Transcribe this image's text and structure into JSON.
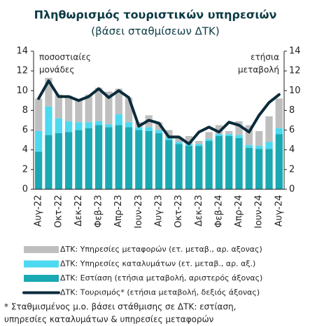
{
  "chart_data": {
    "type": "stacked_bar_line",
    "title": "Πληθωρισμός τουριστικών υπηρεσιών",
    "subtitle": "(βάσει σταθμίσεων ΔΤΚ)",
    "y_axis_note": [
      "ποσοστιαίες",
      "μονάδες"
    ],
    "y2_axis_note": [
      "ετήσια",
      "μεταβολή"
    ],
    "categories": [
      "Αυγ-22",
      null,
      "Οκτ-22",
      null,
      "Δεκ-22",
      null,
      "Φεβ-23",
      null,
      "Απρ-23",
      null,
      "Ιουν-23",
      null,
      "Αυγ-23",
      null,
      "Οκτ-23",
      null,
      "Δεκ-23",
      null,
      "Φεβ-24",
      null,
      "Απρ-24",
      null,
      "Ιουν-24",
      null,
      "Αυγ-24"
    ],
    "series": [
      {
        "name": "ΔΤΚ: Εστίαση (ετήσια μεταβολή, αριστερός άξονας)",
        "color": "#1aa9b2",
        "kind": "bar",
        "values": [
          3.8,
          5.5,
          5.7,
          5.8,
          6.0,
          6.2,
          6.5,
          6.3,
          6.5,
          6.3,
          6.0,
          5.9,
          5.7,
          5.0,
          4.6,
          4.4,
          4.4,
          4.9,
          5.4,
          5.4,
          5.2,
          4.2,
          4.1,
          4.1,
          5.6
        ]
      },
      {
        "name": "ΔΤΚ: Υπηρεσίες καταλυμάτων (ετ. μεταβ., αρ. αξ.)",
        "color": "#4dd9ef",
        "kind": "bar",
        "values": [
          2.1,
          2.9,
          1.5,
          1.1,
          0.8,
          0.6,
          0.4,
          0.3,
          1.1,
          0.5,
          0.3,
          0.4,
          0.3,
          0.3,
          0.2,
          0.2,
          0.2,
          0.2,
          0.2,
          0.2,
          0.3,
          0.3,
          0.3,
          0.7,
          0.6
        ]
      },
      {
        "name": "ΔΤΚ: Υπηρεσίες μεταφορών (ετ. μεταβ., αρ. αξονας)",
        "color": "#bfbfbf",
        "kind": "bar",
        "values": [
          3.3,
          2.9,
          2.4,
          2.6,
          2.3,
          2.8,
          3.4,
          3.3,
          2.6,
          2.5,
          0.5,
          1.2,
          0.8,
          0.7,
          0.5,
          0.8,
          0.3,
          0.7,
          0.9,
          0.3,
          1.4,
          2.0,
          1.5,
          2.6,
          3.0
        ]
      },
      {
        "name": "ΔΤΚ: Τουρισμός* (ετήσια μεταβολή, δεξιός άξονας)",
        "color": "#0b2b3b",
        "kind": "line",
        "axis": "y2",
        "values": [
          9.2,
          11.0,
          9.4,
          9.4,
          9.0,
          9.4,
          10.2,
          9.3,
          10.0,
          9.3,
          6.4,
          7.0,
          6.7,
          5.3,
          5.3,
          4.6,
          5.8,
          6.3,
          5.8,
          6.8,
          6.5,
          5.8,
          7.5,
          8.8,
          9.6
        ]
      }
    ],
    "legend_order": [
      2,
      1,
      0,
      3
    ],
    "ylim": [
      0,
      14
    ],
    "yticks": [
      0,
      2,
      4,
      6,
      8,
      10,
      12,
      14
    ],
    "y2lim": [
      0,
      14
    ],
    "y2ticks": [
      0,
      2,
      4,
      6,
      8,
      10,
      12,
      14
    ],
    "footnote": [
      "* Σταθμισμένος μ.ο. βάσει στάθμισης σε ΔΤΚ: εστίαση,",
      "υπηρεσίες καταλυμάτων & υπηρεσίες μεταφορών"
    ]
  }
}
